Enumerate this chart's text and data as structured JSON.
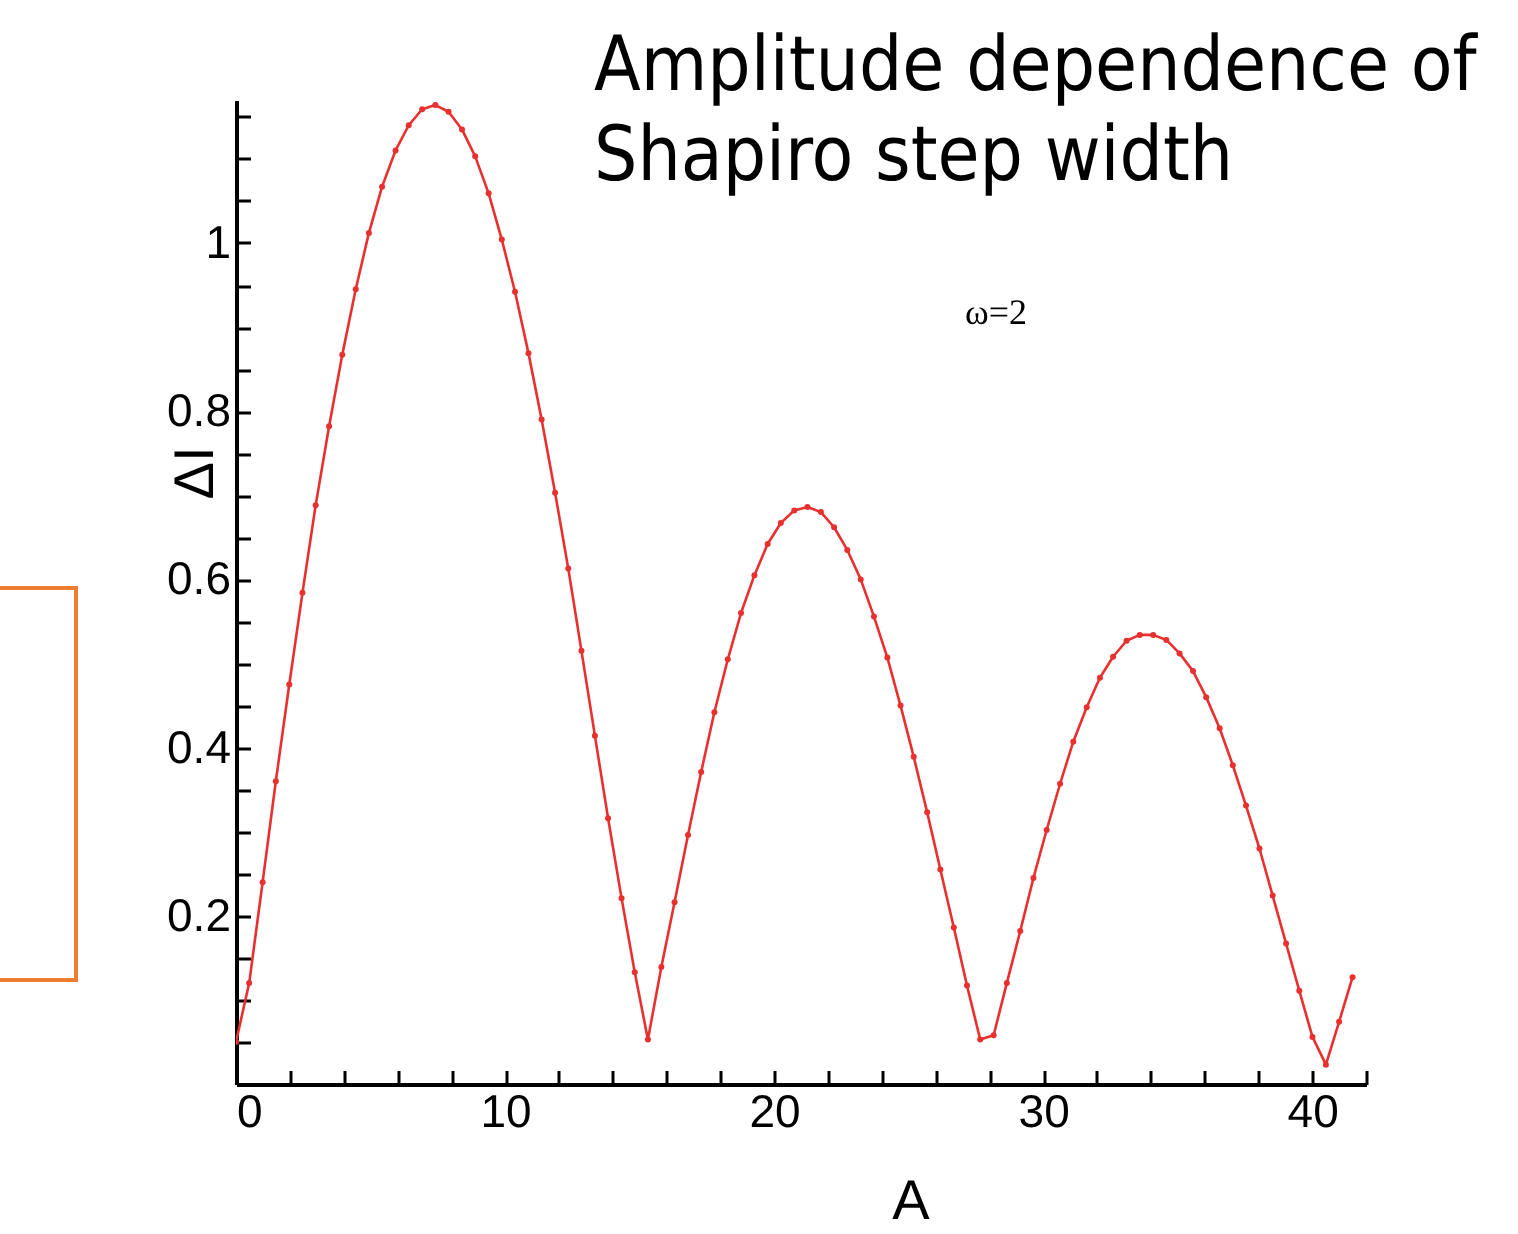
{
  "chart_data": {
    "type": "line",
    "title": "Amplitude dependence of Shapiro step width",
    "xlabel": "A",
    "ylabel": "ΔI",
    "annotations": [
      "ω=2"
    ],
    "x": [
      0,
      0.49,
      0.99,
      1.48,
      1.98,
      2.47,
      2.96,
      3.46,
      3.95,
      4.45,
      4.94,
      5.43,
      5.93,
      6.42,
      6.92,
      7.41,
      7.9,
      8.4,
      8.89,
      9.39,
      9.88,
      10.37,
      10.87,
      11.36,
      11.86,
      12.35,
      12.84,
      13.34,
      13.83,
      14.33,
      14.82,
      15.31,
      15.81,
      16.3,
      16.8,
      17.29,
      17.78,
      18.28,
      18.77,
      19.27,
      19.76,
      20.25,
      20.75,
      21.24,
      21.74,
      22.23,
      22.72,
      23.22,
      23.71,
      24.21,
      24.7,
      25.19,
      25.69,
      26.18,
      26.68,
      27.17,
      27.66,
      28.16,
      28.65,
      29.15,
      29.64,
      30.13,
      30.63,
      31.12,
      31.62,
      32.11,
      32.6,
      33.1,
      33.59,
      34.09,
      34.58,
      35.07,
      35.57,
      36.06,
      36.56,
      37.05,
      37.54,
      38.04,
      38.53,
      39.03,
      39.52,
      40.01,
      40.51,
      41,
      41.5
    ],
    "series": [
      {
        "color": "#e8302e",
        "values": [
          0.05,
          0.12,
          0.24,
          0.36,
          0.475,
          0.584,
          0.688,
          0.782,
          0.867,
          0.945,
          1.012,
          1.067,
          1.11,
          1.14,
          1.159,
          1.164,
          1.156,
          1.135,
          1.103,
          1.059,
          1.004,
          0.942,
          0.869,
          0.79,
          0.703,
          0.613,
          0.515,
          0.414,
          0.316,
          0.221,
          0.133,
          0.053,
          0.139,
          0.216,
          0.296,
          0.371,
          0.442,
          0.505,
          0.56,
          0.605,
          0.642,
          0.667,
          0.682,
          0.686,
          0.68,
          0.662,
          0.635,
          0.6,
          0.556,
          0.507,
          0.45,
          0.389,
          0.323,
          0.255,
          0.186,
          0.117,
          0.053,
          0.058,
          0.12,
          0.182,
          0.245,
          0.302,
          0.357,
          0.407,
          0.448,
          0.483,
          0.508,
          0.527,
          0.534,
          0.534,
          0.528,
          0.512,
          0.491,
          0.46,
          0.423,
          0.379,
          0.331,
          0.28,
          0.224,
          0.167,
          0.111,
          0.056,
          0.023,
          0.074,
          0.127
        ]
      }
    ],
    "xlim": [
      0,
      42
    ],
    "ylim": [
      0,
      1.17
    ],
    "xticks": [
      0,
      {
        "value": 2,
        "label": null
      },
      {
        "value": 4,
        "label": null
      },
      {
        "value": 6,
        "label": null
      },
      {
        "value": 8,
        "label": null
      },
      10,
      {
        "value": 12,
        "label": null
      },
      {
        "value": 14,
        "label": null
      },
      {
        "value": 16,
        "label": null
      },
      {
        "value": 18,
        "label": null
      },
      20,
      {
        "value": 22,
        "label": null
      },
      {
        "value": 24,
        "label": null
      },
      {
        "value": 26,
        "label": null
      },
      {
        "value": 28,
        "label": null
      },
      30,
      {
        "value": 32,
        "label": null
      },
      {
        "value": 34,
        "label": null
      },
      {
        "value": 36,
        "label": null
      },
      {
        "value": 38,
        "label": null
      },
      40,
      {
        "value": 42,
        "label": null
      }
    ],
    "yticks": [
      {
        "value": 0.05,
        "label": null
      },
      {
        "value": 0.1,
        "label": null
      },
      {
        "value": 0.15,
        "label": null
      },
      0.2,
      {
        "value": 0.25,
        "label": null
      },
      {
        "value": 0.3,
        "label": null
      },
      {
        "value": 0.35,
        "label": null
      },
      0.4,
      {
        "value": 0.45,
        "label": null
      },
      {
        "value": 0.5,
        "label": null
      },
      {
        "value": 0.55,
        "label": null
      },
      0.6,
      {
        "value": 0.65,
        "label": null
      },
      {
        "value": 0.7,
        "label": null
      },
      {
        "value": 0.75,
        "label": null
      },
      0.8,
      {
        "value": 0.85,
        "label": null
      },
      {
        "value": 0.9,
        "label": null
      },
      {
        "value": 0.95,
        "label": null
      },
      1,
      {
        "value": 1.05,
        "label": null
      },
      {
        "value": 1.1,
        "label": null
      },
      {
        "value": 1.15,
        "label": null
      }
    ],
    "marker": "circle",
    "line_style": "solid"
  }
}
